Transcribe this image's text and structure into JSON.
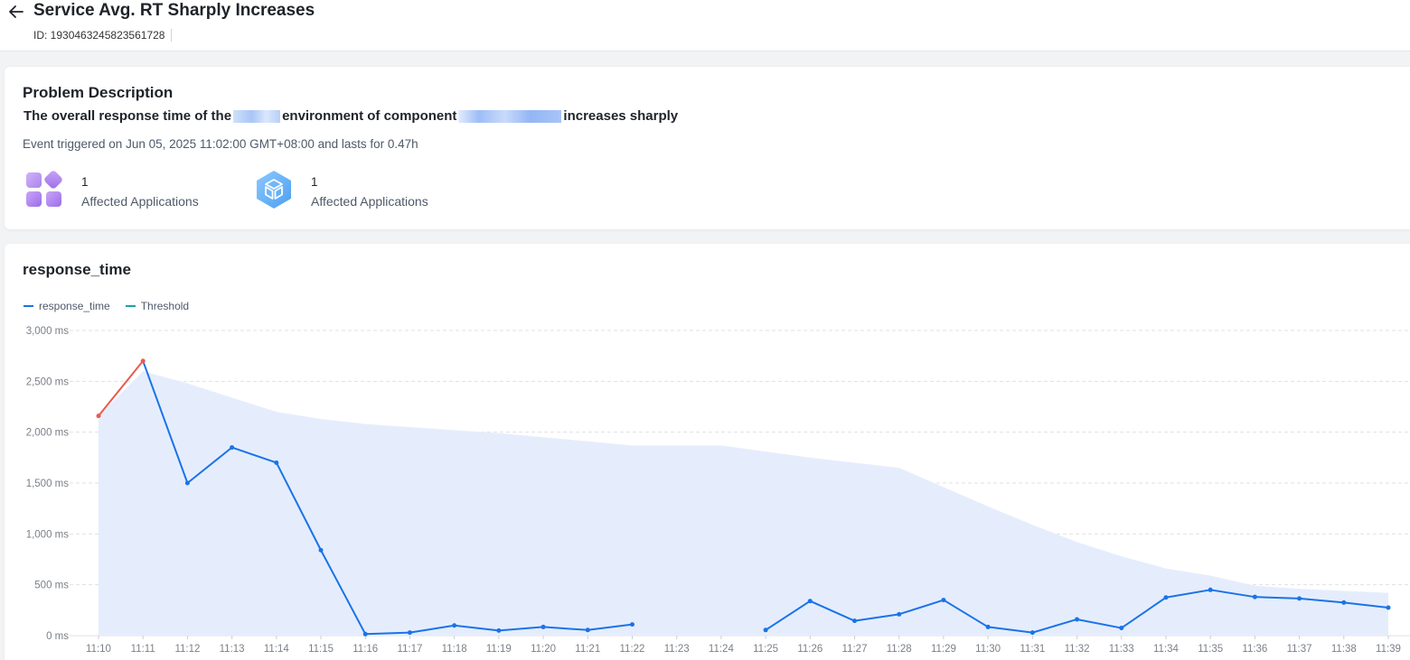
{
  "header": {
    "title": "Service Avg. RT Sharply Increases",
    "id_text": "ID: 1930463245823561728"
  },
  "problem": {
    "section_title": "Problem Description",
    "line_part1": "The overall response time of the",
    "line_part2": "environment of component",
    "line_part3": "increases sharply",
    "event_text": "Event triggered on Jun 05, 2025 11:02:00 GMT+08:00 and lasts for 0.47h",
    "stats": [
      {
        "icon": "applications-grid-icon",
        "value": "1",
        "label": "Affected Applications"
      },
      {
        "icon": "component-cube-icon",
        "value": "1",
        "label": "Affected Applications"
      }
    ]
  },
  "chart_section": {
    "title": "response_time"
  },
  "colors": {
    "series_line": "#1a73e8",
    "anomaly_line": "#eb5a50",
    "threshold_fill": "#e5edfd",
    "threshold_legend": "#14a6a6"
  },
  "chart_data": {
    "type": "line",
    "x": [
      "11:10",
      "11:11",
      "11:12",
      "11:13",
      "11:14",
      "11:15",
      "11:16",
      "11:17",
      "11:18",
      "11:19",
      "11:20",
      "11:21",
      "11:22",
      "11:23",
      "11:24",
      "11:25",
      "11:26",
      "11:27",
      "11:28",
      "11:29",
      "11:30",
      "11:31",
      "11:32",
      "11:33",
      "11:34",
      "11:35",
      "11:36",
      "11:37",
      "11:38",
      "11:39"
    ],
    "ylim": [
      0,
      3000
    ],
    "y_ticks": [
      "0 ms",
      "500 ms",
      "1,000 ms",
      "1,500 ms",
      "2,000 ms",
      "2,500 ms",
      "3,000 ms"
    ],
    "y_tick_values": [
      0,
      500,
      1000,
      1500,
      2000,
      2500,
      3000
    ],
    "grid": true,
    "legend_placement": "top-left",
    "series": [
      {
        "name": "response_time",
        "values": [
          2160,
          2700,
          1500,
          1850,
          1700,
          840,
          15,
          30,
          100,
          50,
          85,
          55,
          110,
          null,
          null,
          55,
          340,
          145,
          210,
          350,
          85,
          30,
          160,
          75,
          375,
          450,
          380,
          365,
          325,
          275
        ],
        "anomaly_segment": [
          0,
          1
        ]
      },
      {
        "name": "Threshold",
        "type": "area",
        "values": [
          2160,
          2600,
          2480,
          2340,
          2200,
          2130,
          2080,
          2050,
          2020,
          1990,
          1950,
          1910,
          1870,
          1870,
          1870,
          1810,
          1750,
          1700,
          1650,
          1460,
          1270,
          1090,
          920,
          780,
          660,
          590,
          490,
          460,
          440,
          420
        ]
      }
    ]
  }
}
